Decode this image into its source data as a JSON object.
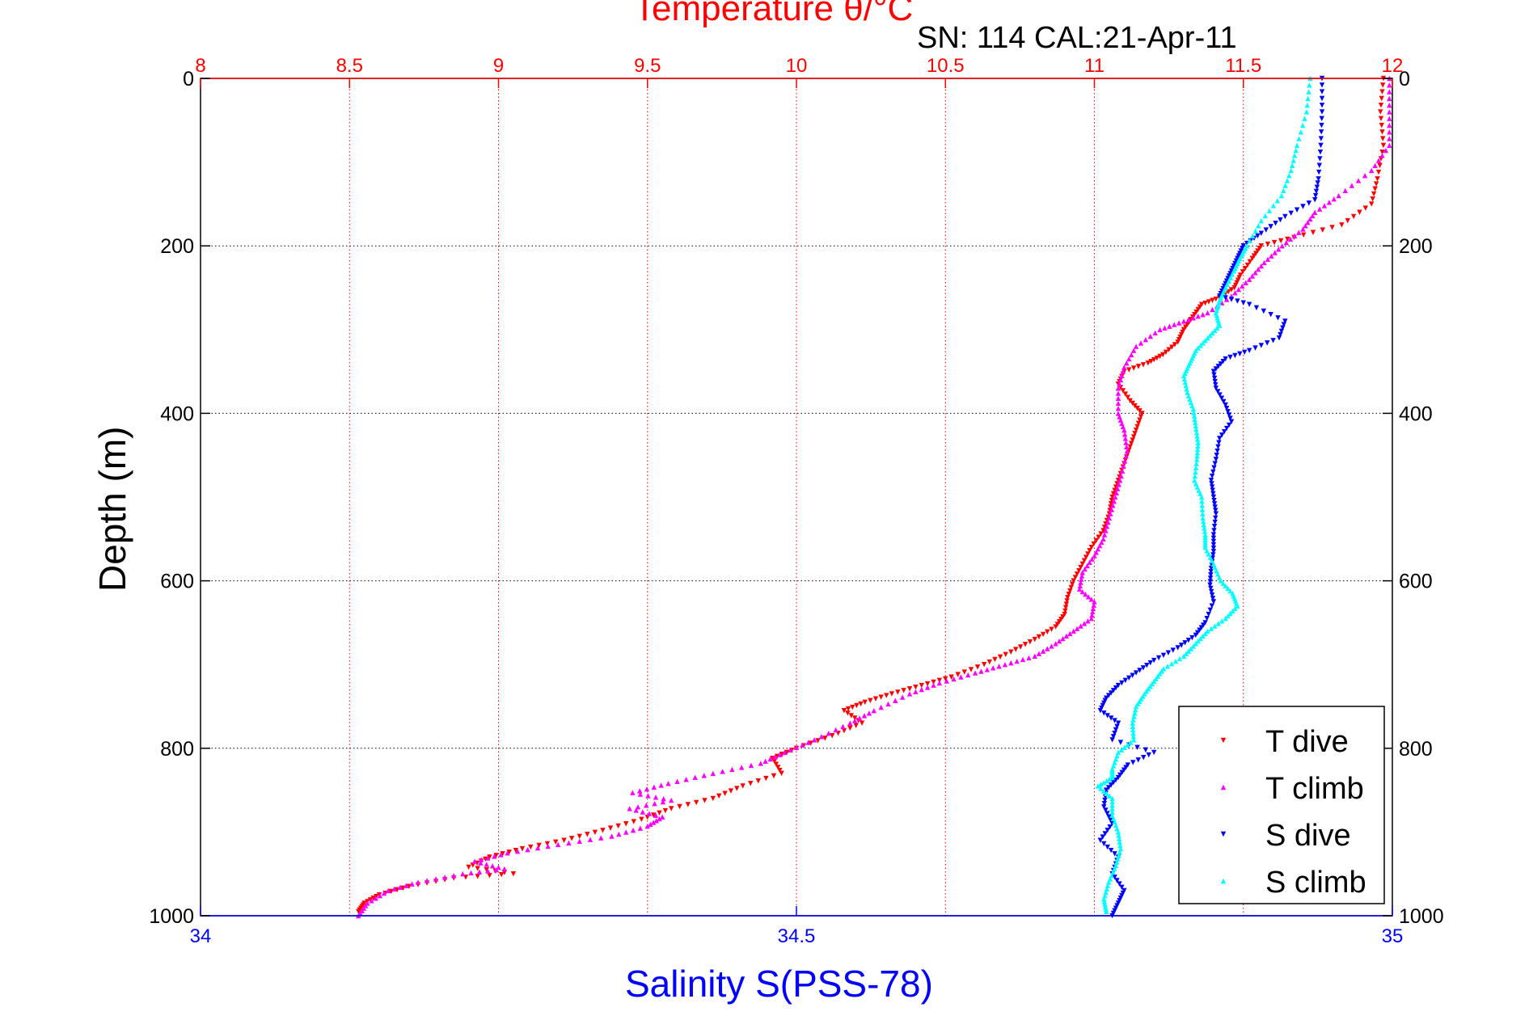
{
  "chart_data": {
    "type": "scatter",
    "title": "Temperature θ/°C",
    "subtitle": "SN: 114  CAL:21-Apr-11",
    "ylabel": "Depth (m)",
    "xlabel_top": "Temperature θ/°C",
    "xlabel_bottom": "Salinity S(PSS-78)",
    "ylim": [
      0,
      1000
    ],
    "y_reversed": true,
    "xlim_top": [
      8,
      12
    ],
    "xlim_bottom": [
      34,
      35
    ],
    "y_ticks": [
      0,
      200,
      400,
      600,
      800,
      1000
    ],
    "x_top_ticks": [
      "8",
      "8.5",
      "9",
      "9.5",
      "10",
      "10.5",
      "11",
      "11.5",
      "12"
    ],
    "x_bottom_ticks": [
      "34",
      "34.5",
      "35"
    ],
    "grid": true,
    "legend_position": "bottom-right",
    "colors": {
      "top_axis": "#ff0000",
      "bottom_axis": "#0000ff",
      "grid_y": "#000000"
    },
    "series": [
      {
        "name": "T dive",
        "axis": "top",
        "color": "#ff0000",
        "marker": "triangle-down",
        "points": [
          [
            11.97,
            0
          ],
          [
            11.96,
            40
          ],
          [
            11.97,
            80
          ],
          [
            11.95,
            120
          ],
          [
            11.93,
            150
          ],
          [
            11.83,
            175
          ],
          [
            11.67,
            190
          ],
          [
            11.56,
            200
          ],
          [
            11.53,
            215
          ],
          [
            11.49,
            235
          ],
          [
            11.47,
            250
          ],
          [
            11.42,
            262
          ],
          [
            11.36,
            270
          ],
          [
            11.33,
            285
          ],
          [
            11.3,
            300
          ],
          [
            11.28,
            315
          ],
          [
            11.23,
            330
          ],
          [
            11.18,
            340
          ],
          [
            11.1,
            350
          ],
          [
            11.08,
            365
          ],
          [
            11.12,
            385
          ],
          [
            11.16,
            400
          ],
          [
            11.14,
            420
          ],
          [
            11.12,
            440
          ],
          [
            11.1,
            460
          ],
          [
            11.08,
            480
          ],
          [
            11.06,
            500
          ],
          [
            11.05,
            520
          ],
          [
            11.03,
            540
          ],
          [
            10.99,
            560
          ],
          [
            10.96,
            580
          ],
          [
            10.93,
            600
          ],
          [
            10.91,
            620
          ],
          [
            10.9,
            640
          ],
          [
            10.87,
            655
          ],
          [
            10.8,
            670
          ],
          [
            10.72,
            685
          ],
          [
            10.63,
            700
          ],
          [
            10.52,
            715
          ],
          [
            10.42,
            725
          ],
          [
            10.32,
            735
          ],
          [
            10.23,
            745
          ],
          [
            10.16,
            755
          ],
          [
            10.22,
            770
          ],
          [
            10.12,
            785
          ],
          [
            10.0,
            800
          ],
          [
            9.92,
            812
          ],
          [
            9.95,
            830
          ],
          [
            9.82,
            845
          ],
          [
            9.72,
            860
          ],
          [
            9.58,
            872
          ],
          [
            9.48,
            885
          ],
          [
            9.35,
            898
          ],
          [
            9.22,
            910
          ],
          [
            9.08,
            920
          ],
          [
            8.97,
            930
          ],
          [
            8.9,
            942
          ],
          [
            9.05,
            950
          ],
          [
            8.85,
            955
          ],
          [
            8.7,
            965
          ],
          [
            8.6,
            975
          ],
          [
            8.55,
            985
          ],
          [
            8.53,
            995
          ]
        ]
      },
      {
        "name": "T climb",
        "axis": "top",
        "color": "#ff00ff",
        "marker": "triangle-up",
        "points": [
          [
            11.99,
            0
          ],
          [
            11.99,
            40
          ],
          [
            11.99,
            80
          ],
          [
            11.93,
            110
          ],
          [
            11.82,
            140
          ],
          [
            11.74,
            160
          ],
          [
            11.7,
            180
          ],
          [
            11.63,
            200
          ],
          [
            11.57,
            220
          ],
          [
            11.52,
            240
          ],
          [
            11.46,
            260
          ],
          [
            11.38,
            280
          ],
          [
            11.3,
            290
          ],
          [
            11.22,
            300
          ],
          [
            11.14,
            320
          ],
          [
            11.1,
            345
          ],
          [
            11.08,
            370
          ],
          [
            11.08,
            400
          ],
          [
            11.1,
            420
          ],
          [
            11.11,
            445
          ],
          [
            11.09,
            475
          ],
          [
            11.07,
            500
          ],
          [
            11.05,
            525
          ],
          [
            11.03,
            550
          ],
          [
            11.0,
            570
          ],
          [
            10.96,
            590
          ],
          [
            10.95,
            610
          ],
          [
            11.0,
            625
          ],
          [
            10.99,
            645
          ],
          [
            10.93,
            660
          ],
          [
            10.87,
            675
          ],
          [
            10.8,
            690
          ],
          [
            10.7,
            700
          ],
          [
            10.6,
            710
          ],
          [
            10.48,
            722
          ],
          [
            10.38,
            735
          ],
          [
            10.26,
            755
          ],
          [
            10.18,
            770
          ],
          [
            10.06,
            790
          ],
          [
            9.96,
            805
          ],
          [
            9.88,
            818
          ],
          [
            9.72,
            830
          ],
          [
            9.57,
            842
          ],
          [
            9.45,
            853
          ],
          [
            9.58,
            862
          ],
          [
            9.44,
            872
          ],
          [
            9.55,
            882
          ],
          [
            9.5,
            893
          ],
          [
            9.38,
            905
          ],
          [
            9.2,
            915
          ],
          [
            9.03,
            925
          ],
          [
            8.92,
            935
          ],
          [
            9.02,
            944
          ],
          [
            8.88,
            950
          ],
          [
            8.73,
            960
          ],
          [
            8.63,
            970
          ],
          [
            8.56,
            985
          ],
          [
            8.53,
            1000
          ]
        ]
      },
      {
        "name": "S dive",
        "axis": "bottom",
        "color": "#0000ff",
        "marker": "triangle-down",
        "points": [
          [
            34.941,
            0
          ],
          [
            34.941,
            40
          ],
          [
            34.94,
            80
          ],
          [
            34.938,
            120
          ],
          [
            34.935,
            145
          ],
          [
            34.91,
            165
          ],
          [
            34.89,
            185
          ],
          [
            34.875,
            200
          ],
          [
            34.87,
            215
          ],
          [
            34.865,
            230
          ],
          [
            34.86,
            245
          ],
          [
            34.855,
            260
          ],
          [
            34.88,
            270
          ],
          [
            34.91,
            290
          ],
          [
            34.905,
            310
          ],
          [
            34.88,
            325
          ],
          [
            34.86,
            335
          ],
          [
            34.85,
            350
          ],
          [
            34.852,
            370
          ],
          [
            34.86,
            390
          ],
          [
            34.865,
            410
          ],
          [
            34.855,
            430
          ],
          [
            34.852,
            455
          ],
          [
            34.848,
            480
          ],
          [
            34.85,
            500
          ],
          [
            34.852,
            520
          ],
          [
            34.85,
            545
          ],
          [
            34.85,
            565
          ],
          [
            34.848,
            585
          ],
          [
            34.847,
            605
          ],
          [
            34.85,
            625
          ],
          [
            34.843,
            650
          ],
          [
            34.835,
            665
          ],
          [
            34.82,
            680
          ],
          [
            34.8,
            695
          ],
          [
            34.785,
            710
          ],
          [
            34.77,
            725
          ],
          [
            34.76,
            740
          ],
          [
            34.755,
            755
          ],
          [
            34.77,
            770
          ],
          [
            34.765,
            790
          ],
          [
            34.8,
            805
          ],
          [
            34.778,
            820
          ],
          [
            34.77,
            835
          ],
          [
            34.76,
            850
          ],
          [
            34.758,
            870
          ],
          [
            34.765,
            890
          ],
          [
            34.755,
            910
          ],
          [
            34.77,
            930
          ],
          [
            34.765,
            950
          ],
          [
            34.775,
            970
          ],
          [
            34.77,
            985
          ],
          [
            34.765,
            1000
          ]
        ]
      },
      {
        "name": "S climb",
        "axis": "bottom",
        "color": "#00ffff",
        "marker": "triangle-up",
        "points": [
          [
            34.931,
            0
          ],
          [
            34.928,
            40
          ],
          [
            34.92,
            80
          ],
          [
            34.915,
            110
          ],
          [
            34.907,
            140
          ],
          [
            34.89,
            170
          ],
          [
            34.878,
            200
          ],
          [
            34.872,
            215
          ],
          [
            34.867,
            230
          ],
          [
            34.86,
            250
          ],
          [
            34.855,
            265
          ],
          [
            34.852,
            280
          ],
          [
            34.855,
            295
          ],
          [
            34.845,
            310
          ],
          [
            34.835,
            325
          ],
          [
            34.83,
            340
          ],
          [
            34.825,
            355
          ],
          [
            34.828,
            375
          ],
          [
            34.833,
            395
          ],
          [
            34.835,
            415
          ],
          [
            34.837,
            435
          ],
          [
            34.836,
            455
          ],
          [
            34.834,
            480
          ],
          [
            34.84,
            500
          ],
          [
            34.841,
            525
          ],
          [
            34.843,
            545
          ],
          [
            34.843,
            560
          ],
          [
            34.85,
            580
          ],
          [
            34.856,
            600
          ],
          [
            34.866,
            615
          ],
          [
            34.87,
            630
          ],
          [
            34.86,
            645
          ],
          [
            34.845,
            660
          ],
          [
            34.835,
            675
          ],
          [
            34.825,
            690
          ],
          [
            34.808,
            705
          ],
          [
            34.8,
            720
          ],
          [
            34.792,
            735
          ],
          [
            34.785,
            750
          ],
          [
            34.782,
            770
          ],
          [
            34.783,
            790
          ],
          [
            34.77,
            805
          ],
          [
            34.765,
            825
          ],
          [
            34.765,
            835
          ],
          [
            34.753,
            845
          ],
          [
            34.765,
            860
          ],
          [
            34.765,
            880
          ],
          [
            34.77,
            900
          ],
          [
            34.772,
            920
          ],
          [
            34.768,
            940
          ],
          [
            34.762,
            960
          ],
          [
            34.758,
            980
          ],
          [
            34.76,
            995
          ]
        ]
      }
    ]
  }
}
